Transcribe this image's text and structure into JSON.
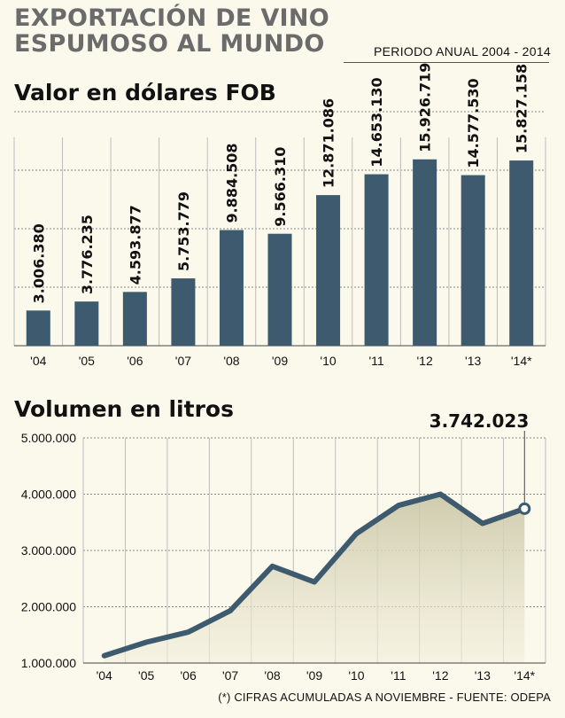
{
  "header": {
    "title_line1": "EXPORTACIÓN DE VINO",
    "title_line2": "ESPUMOSO AL MUNDO",
    "period": "PERIODO ANUAL 2004 - 2014"
  },
  "footnote": "(*) CIFRAS ACUMULADAS A NOVIEMBRE - FUENTE: ODEPA",
  "colors": {
    "bar": "#3d5a6e",
    "line": "#3d5a6e",
    "area": "#d6d3b8",
    "background": "#fbf8ec"
  },
  "chart_data": [
    {
      "type": "bar",
      "title": "Valor en dólares FOB",
      "categories": [
        "'04",
        "'05",
        "'06",
        "'07",
        "'08",
        "'09",
        "'10",
        "'11",
        "'12",
        "'13",
        "'14*"
      ],
      "values": [
        3006380,
        3776235,
        4593877,
        5753779,
        9884508,
        9566310,
        12871086,
        14653130,
        15926719,
        14577530,
        15827158
      ],
      "labels": [
        "3.006.380",
        "3.776.235",
        "4.593.877",
        "5.753.779",
        "9.884.508",
        "9.566.310",
        "12.871.086",
        "14.653.130",
        "15.926.719",
        "14.577.530",
        "15.827.158"
      ],
      "ylim": [
        0,
        20000000
      ],
      "grid": true,
      "legend": "none"
    },
    {
      "type": "area",
      "title": "Volumen en litros",
      "categories": [
        "'04",
        "'05",
        "'06",
        "'07",
        "'08",
        "'09",
        "'10",
        "'11",
        "'12",
        "'13",
        "'14*"
      ],
      "values": [
        1130000,
        1370000,
        1550000,
        1930000,
        2720000,
        2440000,
        3300000,
        3800000,
        4000000,
        3480000,
        3742023
      ],
      "ylim": [
        1000000,
        5000000
      ],
      "yticks": [
        "1.000.000",
        "2.000.000",
        "3.000.000",
        "4.000.000",
        "5.000.000"
      ],
      "ytick_values": [
        1000000,
        2000000,
        3000000,
        4000000,
        5000000
      ],
      "annotation": "3.742.023",
      "grid": true,
      "legend": "none"
    }
  ]
}
